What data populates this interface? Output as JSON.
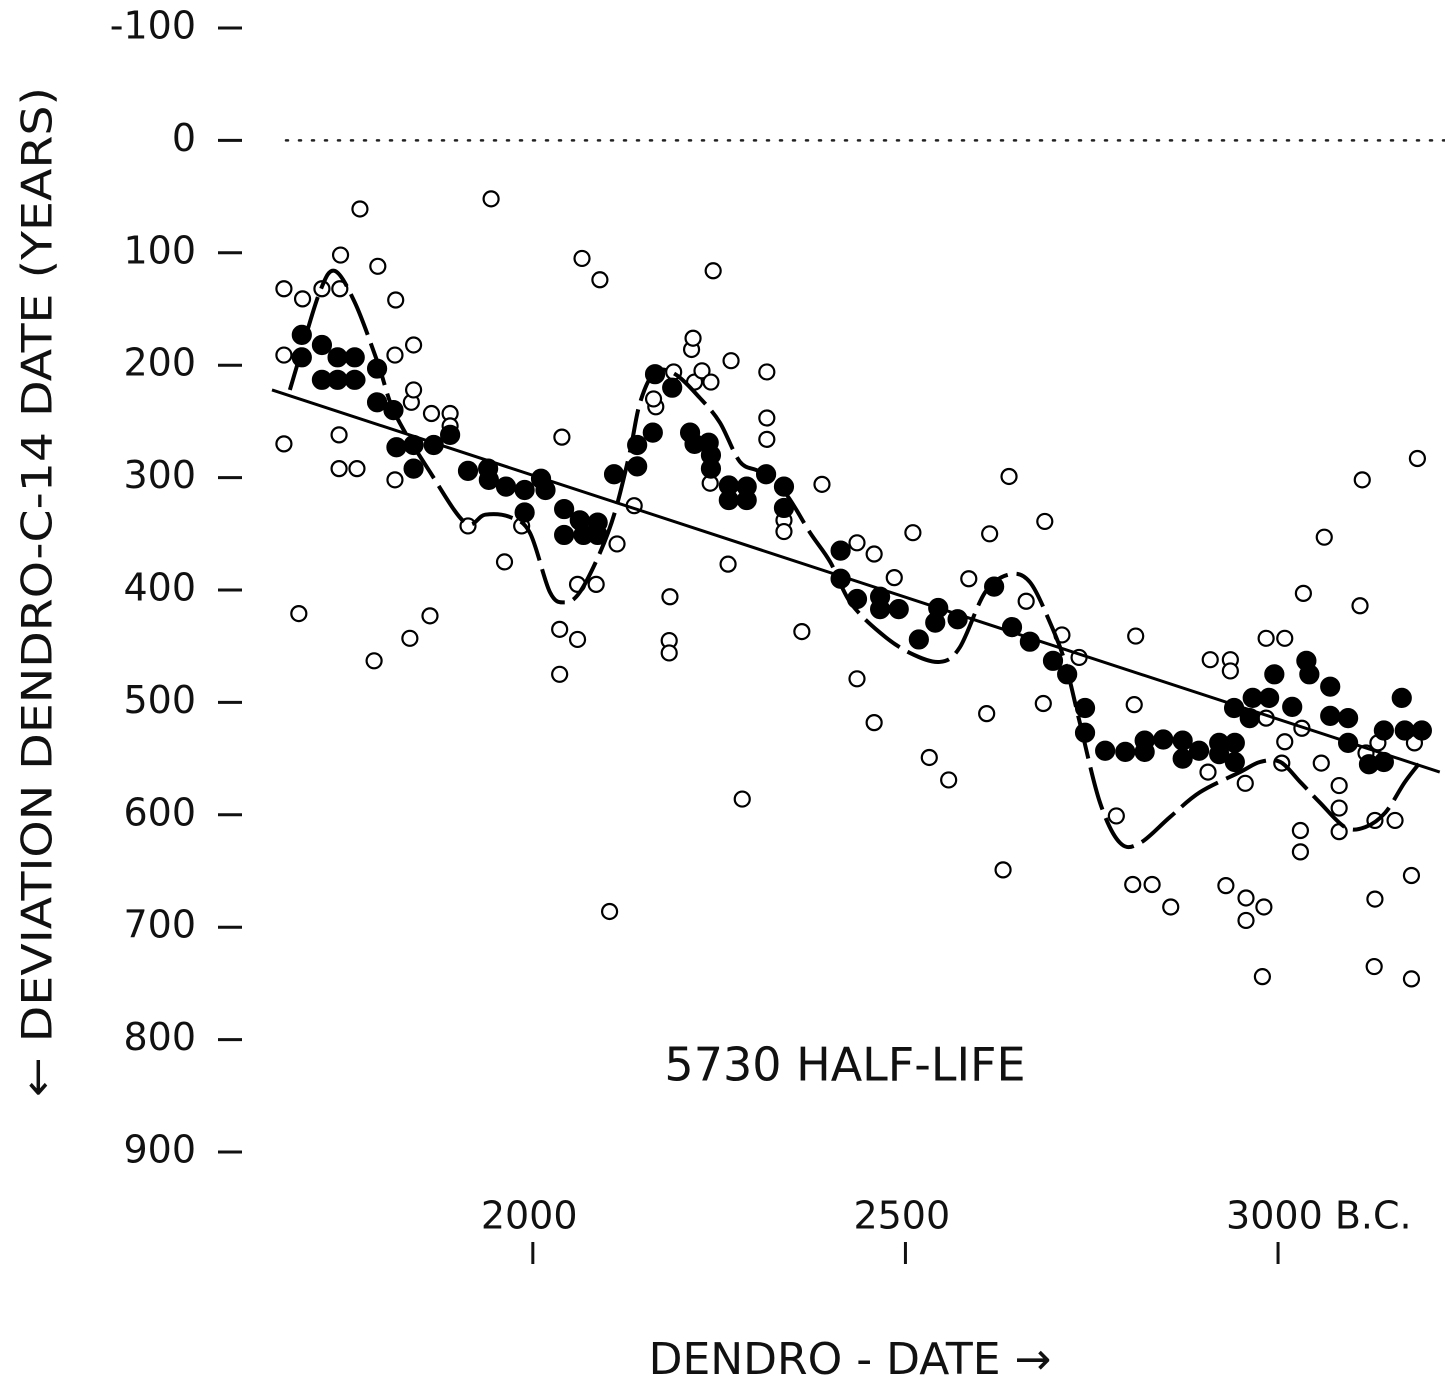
{
  "chart_data": {
    "type": "scatter",
    "annotation": "5730 HALF-LIFE",
    "y_label": "← DEVIATION DENDRO-C-14 DATE (YEARS)",
    "x_label": "DENDRO - DATE →",
    "xlim": [
      1650,
      3220
    ],
    "xticks": [
      2000,
      2500,
      {
        "value": 3000,
        "label": "3000 B.C."
      }
    ],
    "ylim": [
      -100,
      900
    ],
    "yticks": [
      -100,
      0,
      100,
      200,
      300,
      400,
      500,
      600,
      700,
      800,
      900
    ],
    "reference_line": 0,
    "series": [
      {
        "marker": "open",
        "color": "#000000",
        "x": [
          1666,
          1666,
          1666,
          1691,
          1686,
          1717,
          1741,
          1742,
          1740,
          1740,
          1764,
          1768,
          1764,
          1787,
          1792,
          1816,
          1815,
          1815,
          1835,
          1837,
          1840,
          1840,
          1862,
          1864,
          1889,
          1889,
          1913,
          1944,
          1962,
          1985,
          2036,
          2036,
          2039,
          2060,
          2060,
          2066,
          2085,
          2090,
          2103,
          2113,
          2136,
          2184,
          2183,
          2183,
          2213,
          2215,
          2217,
          2189,
          2165,
          2162,
          2227,
          2239,
          2242,
          2238,
          2266,
          2262,
          2281,
          2314,
          2314,
          2314,
          2337,
          2337,
          2388,
          2361,
          2435,
          2435,
          2458,
          2458,
          2485,
          2510,
          2532,
          2558,
          2585,
          2609,
          2613,
          2631,
          2639,
          2662,
          2685,
          2687,
          2710,
          2733,
          2783,
          2807,
          2809,
          2805,
          2831,
          2856,
          2909,
          2936,
          2936,
          2906,
          2930,
          2957,
          2957,
          2981,
          2979,
          2956,
          2984,
          2984,
          3009,
          3009,
          3005,
          3034,
          3030,
          3030,
          3032,
          3058,
          3062,
          3082,
          3082,
          3082,
          3113,
          3110,
          3130,
          3130,
          3129,
          3118,
          3134,
          3157,
          3179,
          3179,
          3183,
          3187
        ],
        "values": [
          132,
          191,
          270,
          141,
          421,
          132,
          132,
          102,
          262,
          292,
          292,
          61,
          213,
          463,
          112,
          142,
          191,
          302,
          443,
          233,
          222,
          182,
          423,
          243,
          243,
          254,
          343,
          52,
          375,
          343,
          475,
          435,
          264,
          444,
          395,
          105,
          395,
          124,
          686,
          359,
          325,
          406,
          445,
          456,
          186,
          176,
          215,
          206,
          237,
          230,
          205,
          215,
          116,
          305,
          196,
          377,
          586,
          206,
          247,
          266,
          338,
          348,
          306,
          437,
          358,
          479,
          368,
          518,
          389,
          349,
          549,
          569,
          390,
          510,
          350,
          649,
          299,
          410,
          501,
          339,
          440,
          460,
          601,
          502,
          441,
          662,
          662,
          682,
          462,
          462,
          472,
          562,
          663,
          674,
          694,
          682,
          744,
          572,
          514,
          443,
          443,
          535,
          554,
          403,
          614,
          633,
          523,
          554,
          353,
          574,
          594,
          615,
          302,
          414,
          605,
          675,
          735,
          545,
          536,
          605,
          654,
          746,
          536,
          283
        ]
      },
      {
        "marker": "filled",
        "color": "#000000",
        "x": [
          1690,
          1690,
          1717,
          1738,
          1717,
          1738,
          1761,
          1761,
          1791,
          1791,
          1813,
          1817,
          1840,
          1840,
          1867,
          1889,
          1913,
          1940,
          1941,
          1964,
          1989,
          2011,
          2017,
          1989,
          2042,
          2042,
          2063,
          2068,
          2087,
          2087,
          2109,
          2140,
          2140,
          2164,
          2161,
          2187,
          2211,
          2217,
          2236,
          2239,
          2239,
          2263,
          2263,
          2287,
          2287,
          2313,
          2337,
          2337,
          2413,
          2413,
          2435,
          2466,
          2466,
          2491,
          2518,
          2544,
          2540,
          2570,
          2619,
          2643,
          2667,
          2698,
          2717,
          2741,
          2741,
          2768,
          2795,
          2821,
          2821,
          2846,
          2872,
          2872,
          2894,
          2921,
          2921,
          2942,
          2942,
          2941,
          2962,
          2966,
          2988,
          2995,
          3019,
          3038,
          3042,
          3070,
          3070,
          3094,
          3094,
          3122,
          3142,
          3142,
          3166,
          3170,
          3193
        ],
        "values": [
          173,
          193,
          182,
          193,
          213,
          213,
          193,
          213,
          203,
          233,
          240,
          273,
          271,
          292,
          271,
          262,
          294,
          292,
          302,
          308,
          311,
          301,
          311,
          331,
          328,
          351,
          338,
          351,
          340,
          351,
          297,
          271,
          290,
          208,
          260,
          220,
          260,
          270,
          269,
          280,
          292,
          307,
          320,
          308,
          320,
          297,
          308,
          327,
          365,
          390,
          408,
          406,
          417,
          417,
          444,
          416,
          429,
          426,
          397,
          433,
          446,
          463,
          475,
          505,
          527,
          543,
          544,
          534,
          544,
          533,
          534,
          550,
          543,
          536,
          546,
          536,
          553,
          505,
          514,
          496,
          496,
          475,
          504,
          463,
          475,
          486,
          512,
          514,
          536,
          555,
          525,
          553,
          496,
          525,
          525
        ]
      },
      {
        "marker": "dashed-line",
        "color": "#000000",
        "x": [
          1674,
          1687,
          1714,
          1734,
          1761,
          1792,
          1815,
          1862,
          1909,
          1936,
          1969,
          1996,
          2023,
          2043,
          2063,
          2090,
          2110,
          2130,
          2144,
          2164,
          2191,
          2224,
          2251,
          2278,
          2305,
          2338,
          2372,
          2399,
          2426,
          2466,
          2506,
          2546,
          2573,
          2607,
          2640,
          2667,
          2694,
          2714,
          2734,
          2761,
          2788,
          2815,
          2855,
          2895,
          2949,
          2976,
          3003,
          3030,
          3056,
          3090,
          3117,
          3144,
          3170,
          3191
        ],
        "values": [
          222,
          193,
          135,
          116,
          144,
          198,
          243,
          295,
          340,
          333,
          335,
          349,
          402,
          411,
          402,
          367,
          331,
          278,
          233,
          206,
          208,
          229,
          251,
          286,
          295,
          313,
          349,
          375,
          411,
          438,
          456,
          464,
          451,
          402,
          386,
          393,
          429,
          464,
          518,
          589,
          625,
          625,
          602,
          580,
          562,
          553,
          553,
          571,
          589,
          611,
          611,
          598,
          571,
          553
        ]
      },
      {
        "marker": "line",
        "color": "#000000",
        "x": [
          1650,
          3217
        ],
        "values": [
          222,
          562
        ]
      }
    ]
  }
}
